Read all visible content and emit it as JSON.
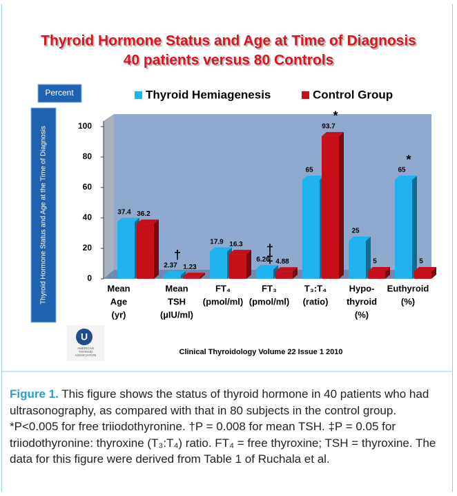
{
  "chart_data": {
    "type": "bar",
    "title": [
      "Thyroid Hormone Status and Age at Time of Diagnosis",
      "40 patients versus 80 Controls"
    ],
    "y_unit_box": "Percent",
    "ylabel": "Thyroid Hormone Status and Age at the Time of Diagnosis",
    "categories": [
      [
        "Mean",
        "Age",
        "(yr)"
      ],
      [
        "Mean",
        "TSH",
        "(µIU/ml)"
      ],
      [
        "FT₄",
        "(pmol/ml)"
      ],
      [
        "FT₃",
        "(pmol/ml)"
      ],
      [
        "T₃:T₄",
        "(ratio)"
      ],
      [
        "Hypo-",
        "thyroid",
        "(%)"
      ],
      [
        "Euthyroid",
        "(%)"
      ]
    ],
    "series": [
      {
        "name": "Thyroid Hemiagenesis",
        "color": "#1eb3ef",
        "values": [
          37.4,
          2.37,
          17.9,
          6.26,
          65,
          25,
          65
        ]
      },
      {
        "name": "Control Group",
        "color": "#c70f18",
        "values": [
          36.2,
          1.23,
          16.3,
          4.88,
          93.7,
          5,
          5
        ]
      }
    ],
    "annotations": [
      {
        "text": "†",
        "category": 1,
        "series": 0
      },
      {
        "text": "†",
        "category": 3,
        "series": 0
      },
      {
        "text": "‡",
        "category": 3,
        "series": 0
      },
      {
        "text": "*",
        "category": 4,
        "series": 1
      },
      {
        "text": "*",
        "category": 6,
        "series": 0
      }
    ],
    "ylim": [
      0,
      100
    ],
    "yticks": [
      0,
      20,
      40,
      60,
      80,
      100
    ],
    "source": "Clinical Thyroidology Volume 22 Issue 1 2010",
    "logo": [
      "AMERICAN",
      "THYROID",
      "ASSOCIATION"
    ]
  },
  "caption": {
    "label": "Figure 1.",
    "text": " This figure shows the status of thyroid hormone in 40 patients who had ultrasonography, as compared with that in 80 subjects in the control group. *P<0.005 for free triiodothyronine. †P = 0.008 for mean TSH. ‡P = 0.05 for triiodothyronine: thyroxine (T₃:T₄) ratio. FT₄ = free thyroxine; TSH = thyroxine. The data for this figure were derived from Table 1 of Ruchala et al."
  }
}
